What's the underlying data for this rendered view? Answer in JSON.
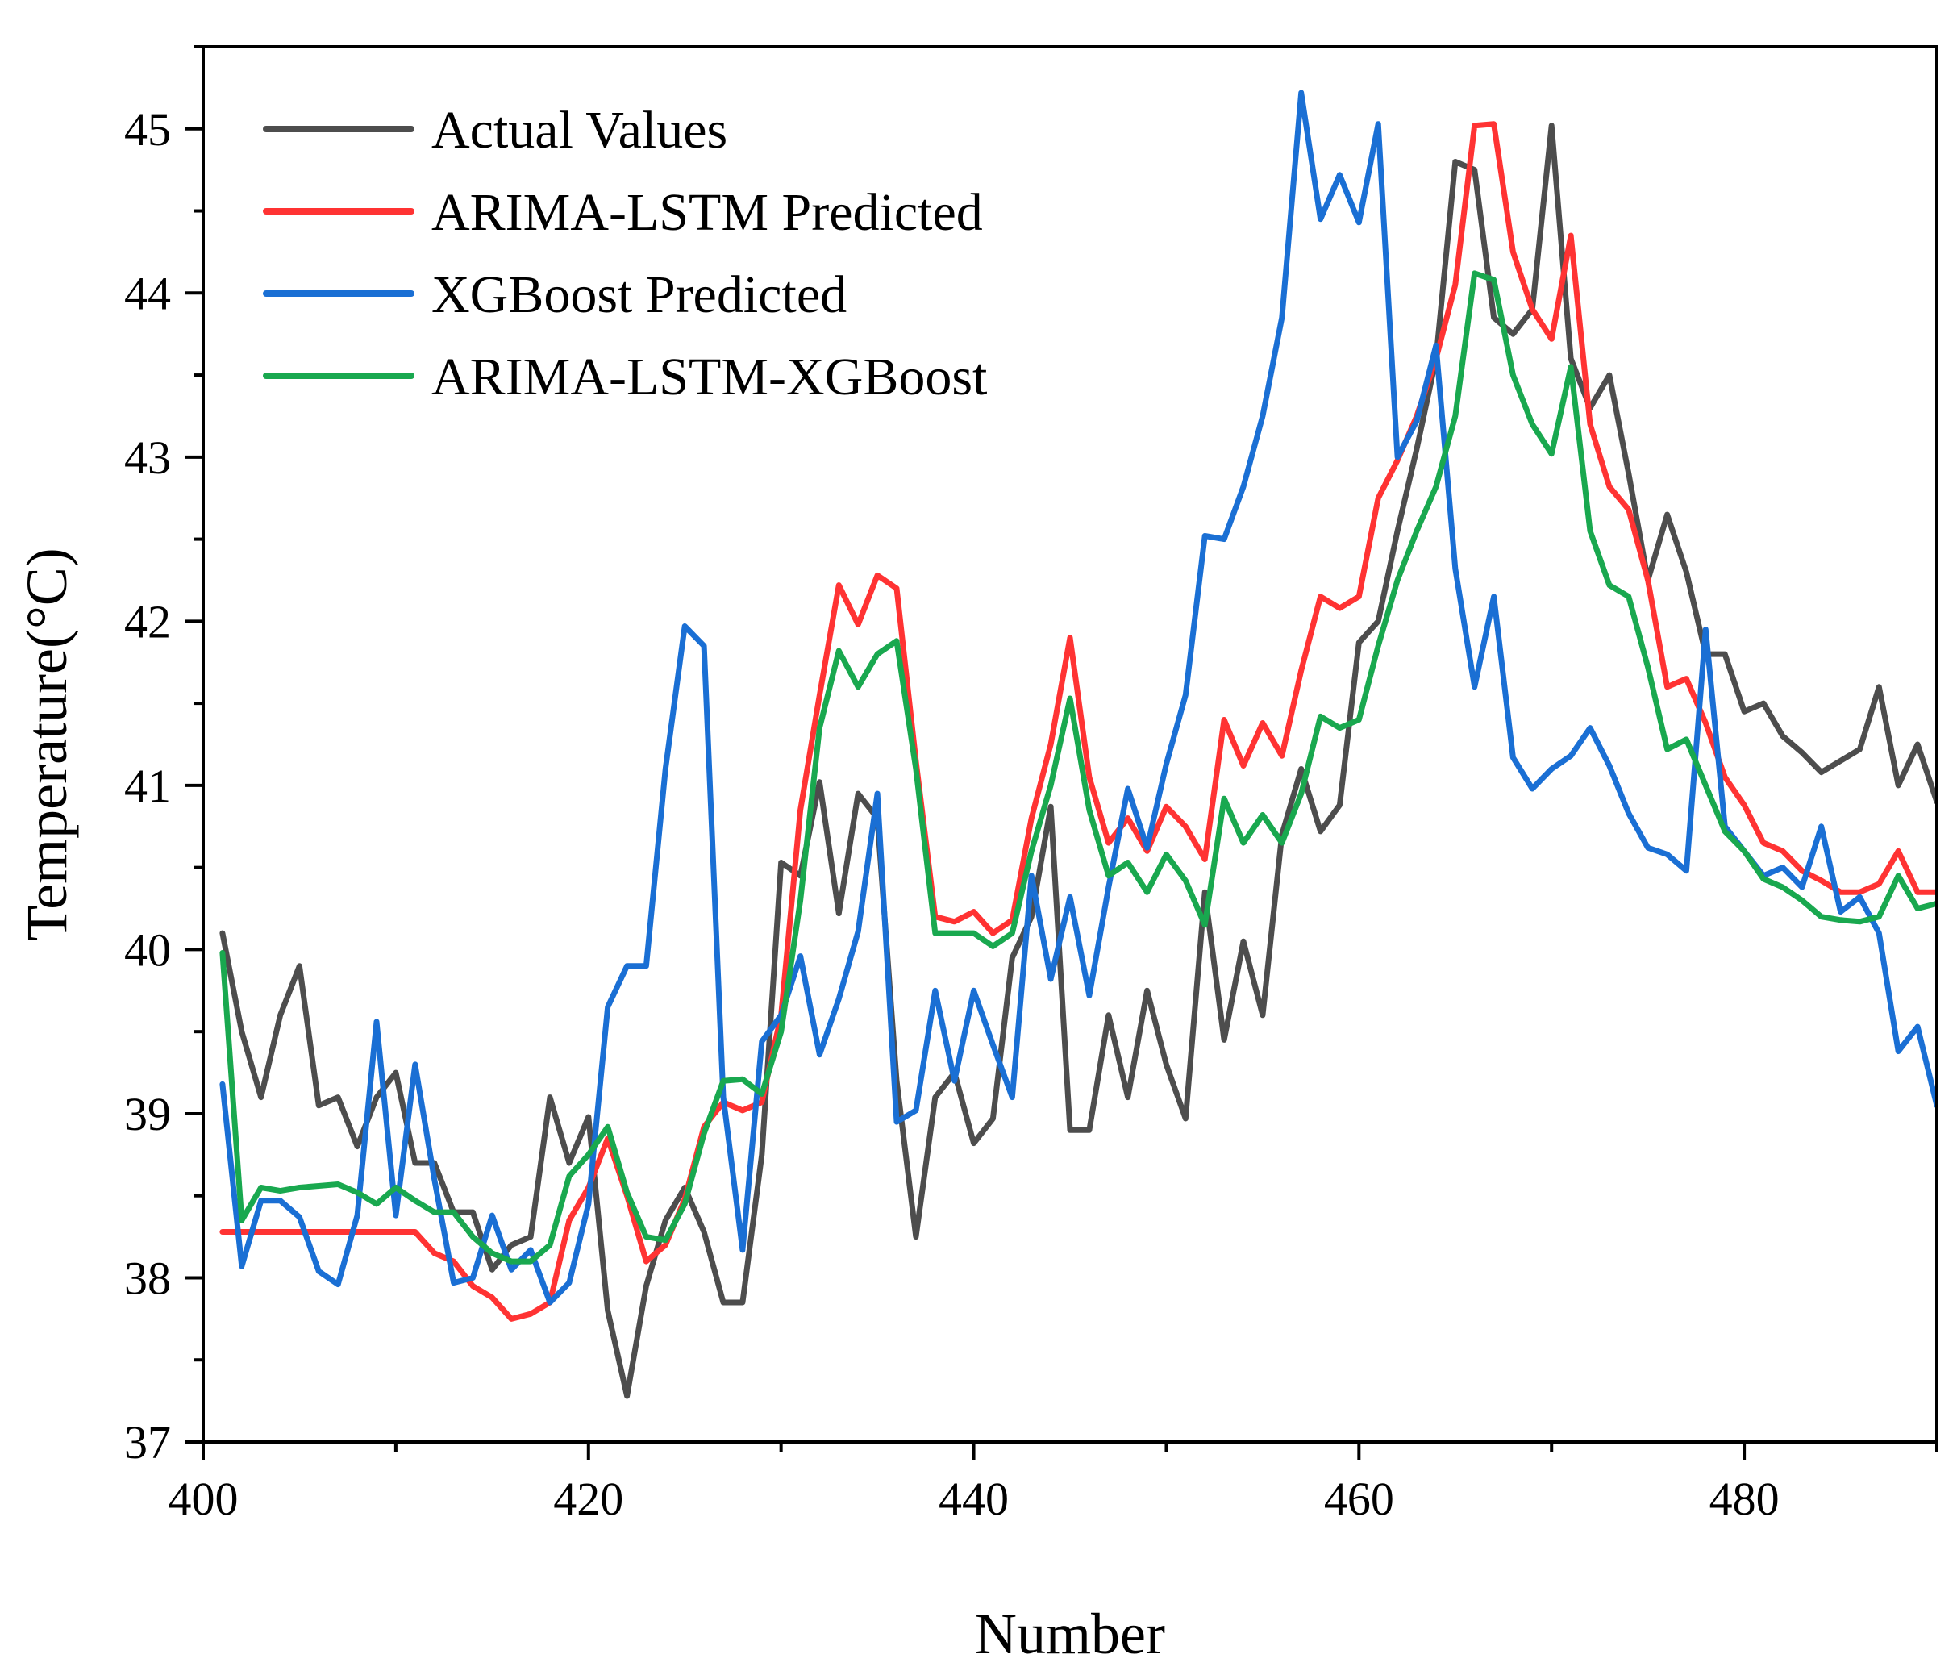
{
  "chart_data": {
    "type": "line",
    "title": "",
    "xlabel": "Number",
    "ylabel": "Temperature(°C)",
    "xlim": [
      400,
      490
    ],
    "ylim": [
      37,
      45.5
    ],
    "x_ticks": [
      400,
      420,
      440,
      460,
      480
    ],
    "y_ticks": [
      37,
      38,
      39,
      40,
      41,
      42,
      43,
      44,
      45
    ],
    "legend_position": "top-left",
    "x": [
      401,
      402,
      403,
      404,
      405,
      406,
      407,
      408,
      409,
      410,
      411,
      412,
      413,
      414,
      415,
      416,
      417,
      418,
      419,
      420,
      421,
      422,
      423,
      424,
      425,
      426,
      427,
      428,
      429,
      430,
      431,
      432,
      433,
      434,
      435,
      436,
      437,
      438,
      439,
      440,
      441,
      442,
      443,
      444,
      445,
      446,
      447,
      448,
      449,
      450,
      451,
      452,
      453,
      454,
      455,
      456,
      457,
      458,
      459,
      460,
      461,
      462,
      463,
      464,
      465,
      466,
      467,
      468,
      469,
      470,
      471,
      472,
      473,
      474,
      475,
      476,
      477,
      478,
      479,
      480,
      481,
      482,
      483,
      484,
      485,
      486,
      487,
      488,
      489,
      490
    ],
    "series": [
      {
        "name": "Actual Values",
        "color": "#4d4d4d",
        "values": [
          40.1,
          39.5,
          39.1,
          39.6,
          39.9,
          39.05,
          39.1,
          38.8,
          39.1,
          39.25,
          38.7,
          38.7,
          38.4,
          38.4,
          38.05,
          38.2,
          38.25,
          39.1,
          38.7,
          38.98,
          37.8,
          37.28,
          37.95,
          38.35,
          38.55,
          38.28,
          37.85,
          37.85,
          38.75,
          40.53,
          40.45,
          41.02,
          40.22,
          40.95,
          40.8,
          39.2,
          38.25,
          39.1,
          39.25,
          38.82,
          38.97,
          39.95,
          40.2,
          40.87,
          38.9,
          38.9,
          39.6,
          39.1,
          39.75,
          39.3,
          38.97,
          40.35,
          39.45,
          40.05,
          39.6,
          40.7,
          41.1,
          40.72,
          40.88,
          41.87,
          42.0,
          42.55,
          43.05,
          43.6,
          44.8,
          44.75,
          43.85,
          43.75,
          43.9,
          45.02,
          43.6,
          43.3,
          43.5,
          42.9,
          42.25,
          42.65,
          42.3,
          41.8,
          41.8,
          41.45,
          41.5,
          41.3,
          41.2,
          41.08,
          41.15,
          41.22,
          41.6,
          41.0,
          41.25,
          40.9
        ]
      },
      {
        "name": "ARIMA-LSTM Predicted",
        "color": "#ff3333",
        "values": [
          38.28,
          38.28,
          38.28,
          38.28,
          38.28,
          38.28,
          38.28,
          38.28,
          38.28,
          38.28,
          38.28,
          38.15,
          38.1,
          37.95,
          37.88,
          37.75,
          37.78,
          37.85,
          38.35,
          38.55,
          38.85,
          38.5,
          38.1,
          38.2,
          38.48,
          38.92,
          39.07,
          39.02,
          39.07,
          39.6,
          40.85,
          41.55,
          42.22,
          41.98,
          42.28,
          42.2,
          41.15,
          40.2,
          40.17,
          40.23,
          40.1,
          40.18,
          40.8,
          41.25,
          41.9,
          41.05,
          40.65,
          40.8,
          40.6,
          40.87,
          40.75,
          40.55,
          41.4,
          41.12,
          41.38,
          41.18,
          41.7,
          42.15,
          42.08,
          42.15,
          42.75,
          42.98,
          43.25,
          43.6,
          44.05,
          45.02,
          45.03,
          44.25,
          43.9,
          43.72,
          44.35,
          43.2,
          42.82,
          42.68,
          42.25,
          41.6,
          41.65,
          41.38,
          41.05,
          40.88,
          40.65,
          40.6,
          40.48,
          40.42,
          40.35,
          40.35,
          40.4,
          40.6,
          40.35,
          40.35
        ]
      },
      {
        "name": "XGBoost Predicted",
        "color": "#1a6fd4",
        "values": [
          39.18,
          38.07,
          38.47,
          38.47,
          38.37,
          38.04,
          37.96,
          38.38,
          39.56,
          38.38,
          39.3,
          38.6,
          37.97,
          38.0,
          38.38,
          38.05,
          38.17,
          37.85,
          37.97,
          38.45,
          39.65,
          39.9,
          39.9,
          41.1,
          41.97,
          41.85,
          39.1,
          38.17,
          39.44,
          39.6,
          39.96,
          39.36,
          39.7,
          40.11,
          40.95,
          38.95,
          39.02,
          39.75,
          39.2,
          39.75,
          39.42,
          39.1,
          40.45,
          39.82,
          40.32,
          39.72,
          40.38,
          40.98,
          40.62,
          41.13,
          41.55,
          42.52,
          42.5,
          42.82,
          43.25,
          43.85,
          45.22,
          44.45,
          44.72,
          44.43,
          45.03,
          43.0,
          43.22,
          43.68,
          42.32,
          41.6,
          42.15,
          41.17,
          40.98,
          41.1,
          41.18,
          41.35,
          41.12,
          40.83,
          40.62,
          40.58,
          40.48,
          41.95,
          40.75,
          40.6,
          40.45,
          40.5,
          40.38,
          40.75,
          40.23,
          40.32,
          40.1,
          39.38,
          39.53,
          39.05
        ]
      },
      {
        "name": "ARIMA-LSTM-XGBoost",
        "color": "#19a84f",
        "values": [
          39.98,
          38.35,
          38.55,
          38.53,
          38.55,
          38.56,
          38.57,
          38.52,
          38.45,
          38.55,
          38.47,
          38.4,
          38.4,
          38.25,
          38.15,
          38.1,
          38.1,
          38.2,
          38.62,
          38.75,
          38.92,
          38.52,
          38.25,
          38.23,
          38.45,
          38.88,
          39.2,
          39.21,
          39.12,
          39.5,
          40.3,
          41.35,
          41.82,
          41.6,
          41.8,
          41.88,
          41.1,
          40.1,
          40.1,
          40.1,
          40.02,
          40.1,
          40.6,
          41.0,
          41.53,
          40.85,
          40.45,
          40.53,
          40.35,
          40.58,
          40.42,
          40.15,
          40.92,
          40.65,
          40.82,
          40.65,
          40.95,
          41.42,
          41.35,
          41.4,
          41.85,
          42.25,
          42.55,
          42.82,
          43.25,
          44.12,
          44.08,
          43.5,
          43.2,
          43.02,
          43.55,
          42.55,
          42.22,
          42.15,
          41.72,
          41.22,
          41.28,
          41.0,
          40.72,
          40.6,
          40.43,
          40.38,
          40.3,
          40.2,
          40.18,
          40.17,
          40.2,
          40.45,
          40.25,
          40.28
        ]
      }
    ]
  }
}
